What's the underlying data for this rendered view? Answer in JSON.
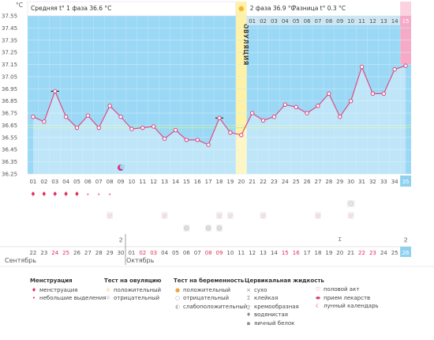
{
  "header": {
    "phase1_avg": "Средняя t° 1 фаза 36.6 °C",
    "phase2_avg": "2 фаза 36.9 °C",
    "difference": "Разница t° 0.3 °C",
    "unit": "°C",
    "ovulation_label": "ОВУЛЯЦИЯ"
  },
  "chart_data": {
    "type": "line",
    "ylabel": "°C",
    "ylim": [
      36.25,
      37.55
    ],
    "y_ticks": [
      "37.55",
      "37.45",
      "37.35",
      "37.25",
      "37.15",
      "37.05",
      "36.95",
      "36.85",
      "36.75",
      "36.65",
      "36.55",
      "36.45",
      "36.35",
      "36.25"
    ],
    "cycle_days": [
      "01",
      "02",
      "03",
      "04",
      "05",
      "06",
      "07",
      "08",
      "09",
      "10",
      "11",
      "12",
      "13",
      "14",
      "15",
      "16",
      "17",
      "18",
      "19",
      "20",
      "21",
      "22",
      "23",
      "24",
      "25",
      "26",
      "27",
      "28",
      "29",
      "30",
      "31",
      "32",
      "33",
      "34",
      "35"
    ],
    "dates": [
      "22",
      "23",
      "24",
      "25",
      "26",
      "27",
      "28",
      "29",
      "30",
      "01",
      "02",
      "03",
      "04",
      "05",
      "06",
      "07",
      "08",
      "09",
      "10",
      "11",
      "12",
      "13",
      "14",
      "15",
      "16",
      "17",
      "18",
      "19",
      "20",
      "21",
      "22",
      "23",
      "24",
      "25",
      "26"
    ],
    "red_dates": [
      2,
      3,
      10,
      11,
      16,
      17,
      23,
      24,
      30,
      31
    ],
    "phase2_days": [
      "01",
      "02",
      "03",
      "04",
      "05",
      "06",
      "07",
      "08",
      "09",
      "10",
      "11",
      "12",
      "13",
      "14",
      "15"
    ],
    "series": [
      {
        "values": [
          36.72,
          36.68,
          36.93,
          36.72,
          36.63,
          36.73,
          36.63,
          36.81,
          36.72,
          36.62,
          36.63,
          36.64,
          36.54,
          36.61,
          36.53,
          36.53,
          36.49,
          36.71,
          36.59,
          36.57,
          36.75,
          36.69,
          36.72,
          36.82,
          36.8,
          36.75,
          36.81,
          36.91,
          36.72,
          36.85,
          37.13,
          36.91,
          36.91,
          37.11,
          37.14
        ]
      }
    ],
    "baseline": 36.63,
    "ovulation_day": 20,
    "today_day": 35,
    "marked_days": [
      3,
      18
    ],
    "legend": {
      "menstruation": {
        "title": "Менструация",
        "items": [
          "менструация",
          "небольшие выделения"
        ]
      },
      "ovulation_test": {
        "title": "Тест на овуляцию",
        "items": [
          "положительный",
          "отрицательный"
        ]
      },
      "pregnancy_test": {
        "title": "Тест на беременность",
        "items": [
          "положительный",
          "отрицательный",
          "слабоположительный"
        ]
      },
      "cervical": {
        "title": "Цервикальная жидкость",
        "items": [
          "сухо",
          "клейкая",
          "кремообразная",
          "водянистая",
          "яичный белок"
        ]
      },
      "other": {
        "items": [
          "половой акт",
          "прием лекарств",
          "лунный календарь"
        ]
      }
    }
  },
  "months": {
    "first": "Сентябрь",
    "second": "Октябрь"
  },
  "colors": {
    "plot_bg": "#9bd8f5",
    "ovulation": "#fff2a6",
    "today": "#f7aac6",
    "line": "#e0407a",
    "baseline": "#c4f08a",
    "red": "#e0305a",
    "header_bg": "#ffffff",
    "date_row_bg": "#cfe6f2"
  }
}
